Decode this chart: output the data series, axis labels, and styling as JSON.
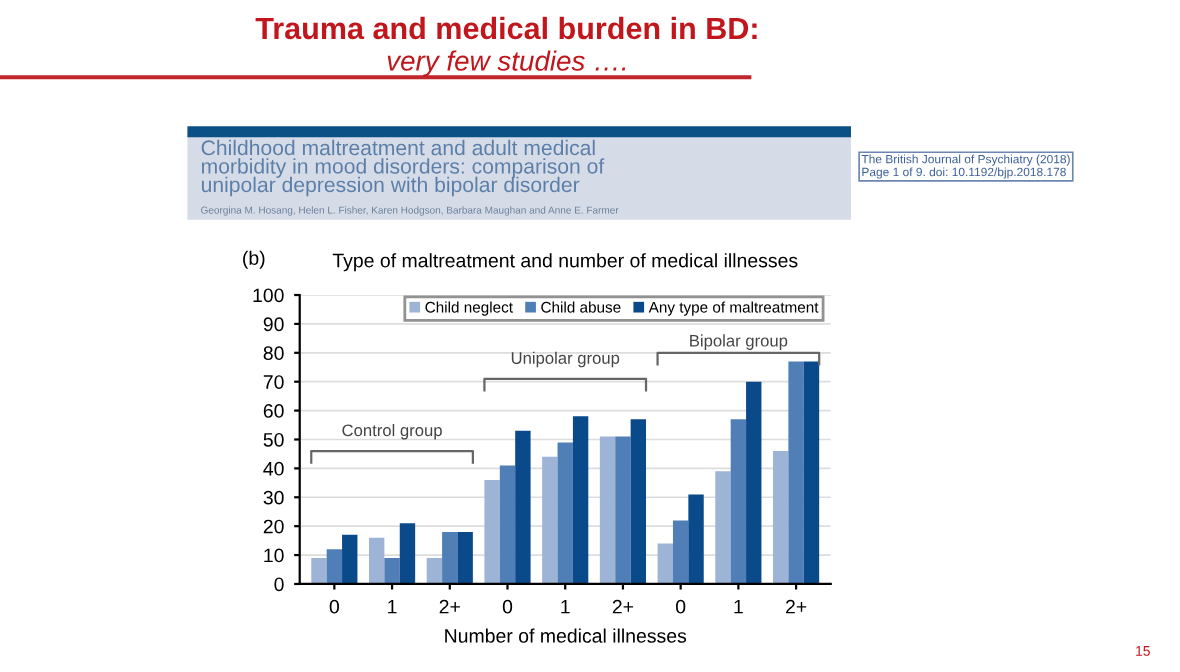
{
  "chart_data": {
    "type": "bar",
    "title": "Type of maltreatment and number of medical illnesses",
    "xlabel": "Number of medical illnesses",
    "categories": [
      "0",
      "1",
      "2+",
      "0",
      "1",
      "2+",
      "0",
      "1",
      "2+"
    ],
    "series": [
      {
        "name": "Child neglect",
        "color": "#9db4d6",
        "values": [
          9,
          16,
          9,
          36,
          44,
          51,
          14,
          39,
          46
        ]
      },
      {
        "name": "Child abuse",
        "color": "#4f7fb6",
        "values": [
          12,
          9,
          18,
          41,
          49,
          51,
          22,
          57,
          77
        ]
      },
      {
        "name": "Any type of maltreatment",
        "color": "#0b4a8a",
        "values": [
          17,
          21,
          18,
          53,
          58,
          57,
          31,
          70,
          77
        ]
      }
    ],
    "ylim": [
      0,
      100
    ],
    "yticks": [
      0,
      10,
      20,
      30,
      40,
      50,
      60,
      70,
      80,
      90,
      100
    ],
    "grid": "y",
    "legend": "top right",
    "annotations": [
      "Trauma and medical burden in BD:",
      "very few studies ….",
      "Childhood maltreatment and adult medical\nmorbidity in mood disorders: comparison of\nunipolar depression with bipolar disorder",
      "Georgina M. Hosang, Helen L. Fisher, Karen Hodgson, Barbara Maughan and Anne E. Farmer",
      "The British Journal of Psychiatry (2018)\nPage 1 of 9. doi: 10.1192/bjp.2018.178",
      "(b)",
      "Control group",
      "Unipolar group",
      "Bipolar group",
      "15"
    ]
  }
}
